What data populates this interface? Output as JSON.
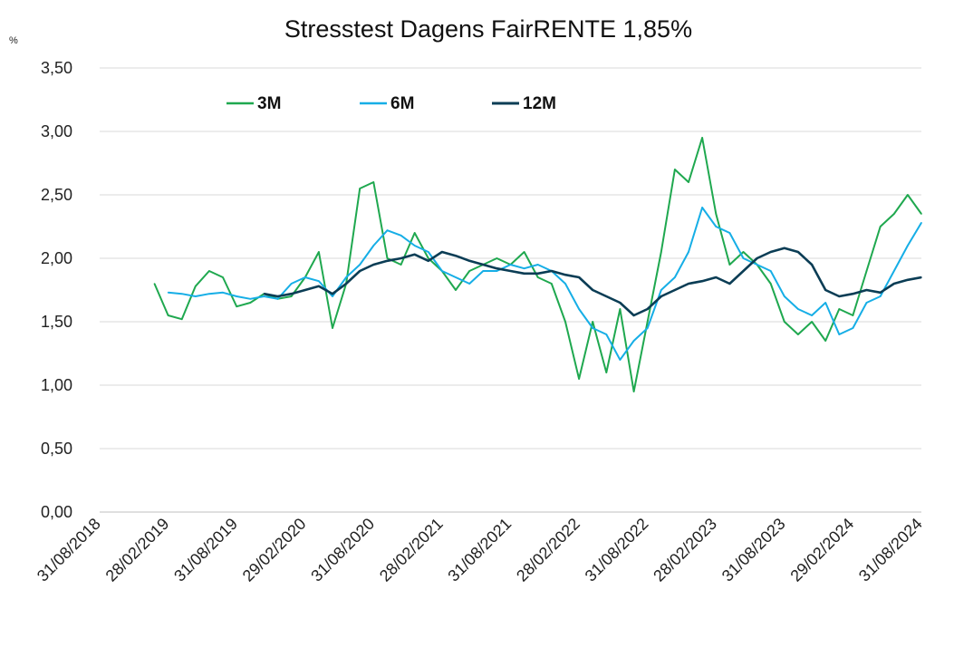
{
  "chart_data": {
    "type": "line",
    "title": "Stresstest Dagens FairRENTE 1,85%",
    "ylabel": "%",
    "xlabel": "",
    "ylim": [
      0,
      3.5
    ],
    "grid": true,
    "legend_position": "top-left",
    "y_ticks": [
      "0,00",
      "0,50",
      "1,00",
      "1,50",
      "2,00",
      "2,50",
      "3,00",
      "3,50"
    ],
    "y_tick_values": [
      0,
      0.5,
      1.0,
      1.5,
      2.0,
      2.5,
      3.0,
      3.5
    ],
    "x_ticks": [
      "31/08/2018",
      "28/02/2019",
      "31/08/2019",
      "29/02/2020",
      "31/08/2020",
      "28/02/2021",
      "31/08/2021",
      "28/02/2022",
      "31/08/2022",
      "28/02/2023",
      "31/08/2023",
      "29/02/2024",
      "31/08/2024"
    ],
    "x_index_range": [
      0,
      12
    ],
    "series": [
      {
        "name": "3M",
        "color": "#1fa84f",
        "x": [
          0.8,
          1.0,
          1.2,
          1.4,
          1.6,
          1.8,
          2.0,
          2.2,
          2.4,
          2.6,
          2.8,
          3.0,
          3.2,
          3.4,
          3.6,
          3.8,
          4.0,
          4.2,
          4.4,
          4.6,
          4.8,
          5.0,
          5.2,
          5.4,
          5.6,
          5.8,
          6.0,
          6.2,
          6.4,
          6.6,
          6.8,
          7.0,
          7.2,
          7.4,
          7.6,
          7.8,
          8.0,
          8.2,
          8.4,
          8.6,
          8.8,
          9.0,
          9.2,
          9.4,
          9.6,
          9.8,
          10.0,
          10.2,
          10.4,
          10.6,
          10.8,
          11.0,
          11.2,
          11.4,
          11.6,
          11.8,
          12.0
        ],
        "values": [
          1.8,
          1.55,
          1.52,
          1.78,
          1.9,
          1.85,
          1.62,
          1.65,
          1.72,
          1.68,
          1.7,
          1.85,
          2.05,
          1.45,
          1.8,
          2.55,
          2.6,
          2.0,
          1.95,
          2.2,
          2.0,
          1.9,
          1.75,
          1.9,
          1.95,
          2.0,
          1.95,
          2.05,
          1.85,
          1.8,
          1.5,
          1.05,
          1.5,
          1.1,
          1.6,
          0.95,
          1.5,
          2.05,
          2.7,
          2.6,
          2.95,
          2.35,
          1.95,
          2.05,
          1.95,
          1.8,
          1.5,
          1.4,
          1.5,
          1.35,
          1.6,
          1.55,
          1.9,
          2.25,
          2.35,
          2.5,
          2.35
        ]
      },
      {
        "name": "6M",
        "color": "#16aee6",
        "x": [
          1.0,
          1.2,
          1.4,
          1.6,
          1.8,
          2.0,
          2.2,
          2.4,
          2.6,
          2.8,
          3.0,
          3.2,
          3.4,
          3.6,
          3.8,
          4.0,
          4.2,
          4.4,
          4.6,
          4.8,
          5.0,
          5.2,
          5.4,
          5.6,
          5.8,
          6.0,
          6.2,
          6.4,
          6.6,
          6.8,
          7.0,
          7.2,
          7.4,
          7.6,
          7.8,
          8.0,
          8.2,
          8.4,
          8.6,
          8.8,
          9.0,
          9.2,
          9.4,
          9.6,
          9.8,
          10.0,
          10.2,
          10.4,
          10.6,
          10.8,
          11.0,
          11.2,
          11.4,
          11.6,
          11.8,
          12.0
        ],
        "values": [
          1.73,
          1.72,
          1.7,
          1.72,
          1.73,
          1.7,
          1.68,
          1.7,
          1.68,
          1.8,
          1.85,
          1.82,
          1.7,
          1.85,
          1.95,
          2.1,
          2.22,
          2.18,
          2.1,
          2.05,
          1.9,
          1.85,
          1.8,
          1.9,
          1.9,
          1.95,
          1.92,
          1.95,
          1.9,
          1.8,
          1.6,
          1.45,
          1.4,
          1.2,
          1.35,
          1.45,
          1.75,
          1.85,
          2.05,
          2.4,
          2.25,
          2.2,
          2.0,
          1.95,
          1.9,
          1.7,
          1.6,
          1.55,
          1.65,
          1.4,
          1.45,
          1.65,
          1.7,
          1.9,
          2.1,
          2.28
        ]
      },
      {
        "name": "12M",
        "color": "#0b3d55",
        "x": [
          2.4,
          2.6,
          2.8,
          3.0,
          3.2,
          3.4,
          3.6,
          3.8,
          4.0,
          4.2,
          4.4,
          4.6,
          4.8,
          5.0,
          5.2,
          5.4,
          5.6,
          5.8,
          6.0,
          6.2,
          6.4,
          6.6,
          6.8,
          7.0,
          7.2,
          7.4,
          7.6,
          7.8,
          8.0,
          8.2,
          8.4,
          8.6,
          8.8,
          9.0,
          9.2,
          9.4,
          9.6,
          9.8,
          10.0,
          10.2,
          10.4,
          10.6,
          10.8,
          11.0,
          11.2,
          11.4,
          11.6,
          11.8,
          12.0
        ],
        "values": [
          1.72,
          1.7,
          1.72,
          1.75,
          1.78,
          1.72,
          1.8,
          1.9,
          1.95,
          1.98,
          2.0,
          2.03,
          1.98,
          2.05,
          2.02,
          1.98,
          1.95,
          1.92,
          1.9,
          1.88,
          1.88,
          1.9,
          1.87,
          1.85,
          1.75,
          1.7,
          1.65,
          1.55,
          1.6,
          1.7,
          1.75,
          1.8,
          1.82,
          1.85,
          1.8,
          1.9,
          2.0,
          2.05,
          2.08,
          2.05,
          1.95,
          1.75,
          1.7,
          1.72,
          1.75,
          1.73,
          1.8,
          1.83,
          1.85
        ]
      }
    ]
  }
}
